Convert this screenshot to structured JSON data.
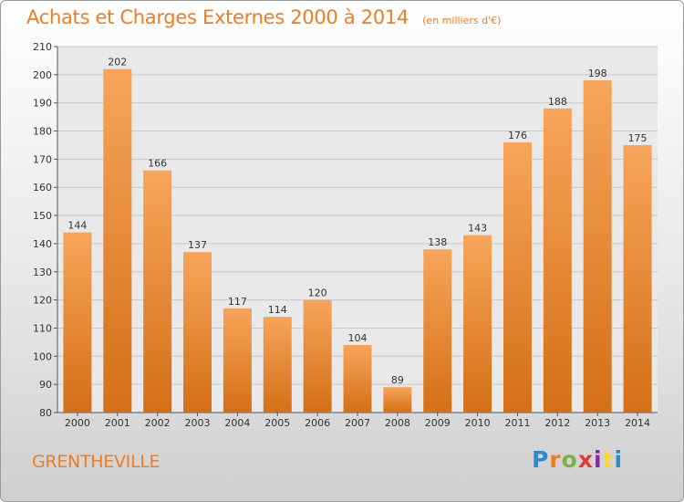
{
  "header": {
    "title": "Achats et Charges Externes 2000 à 2014",
    "subtitle": "(en milliers d'€)"
  },
  "footer": {
    "place": "GRENTHEVILLE",
    "logo": "Proxiti"
  },
  "colors": {
    "accent": "#f07d20",
    "bar_light": "#f7a55a",
    "bar_dark": "#d46f17"
  },
  "chart_data": {
    "type": "bar",
    "title": "Achats et Charges Externes 2000 à 2014",
    "subtitle": "(en milliers d'€)",
    "xlabel": "",
    "ylabel": "",
    "categories": [
      "2000",
      "2001",
      "2002",
      "2003",
      "2004",
      "2005",
      "2006",
      "2007",
      "2008",
      "2009",
      "2010",
      "2011",
      "2012",
      "2013",
      "2014"
    ],
    "values": [
      144,
      202,
      166,
      137,
      117,
      114,
      120,
      104,
      89,
      138,
      143,
      176,
      188,
      198,
      175
    ],
    "ylim": [
      80,
      210
    ],
    "yticks": [
      80,
      90,
      100,
      110,
      120,
      130,
      140,
      150,
      160,
      170,
      180,
      190,
      200,
      210
    ],
    "grid": true,
    "data_labels": true,
    "legend": "none"
  }
}
